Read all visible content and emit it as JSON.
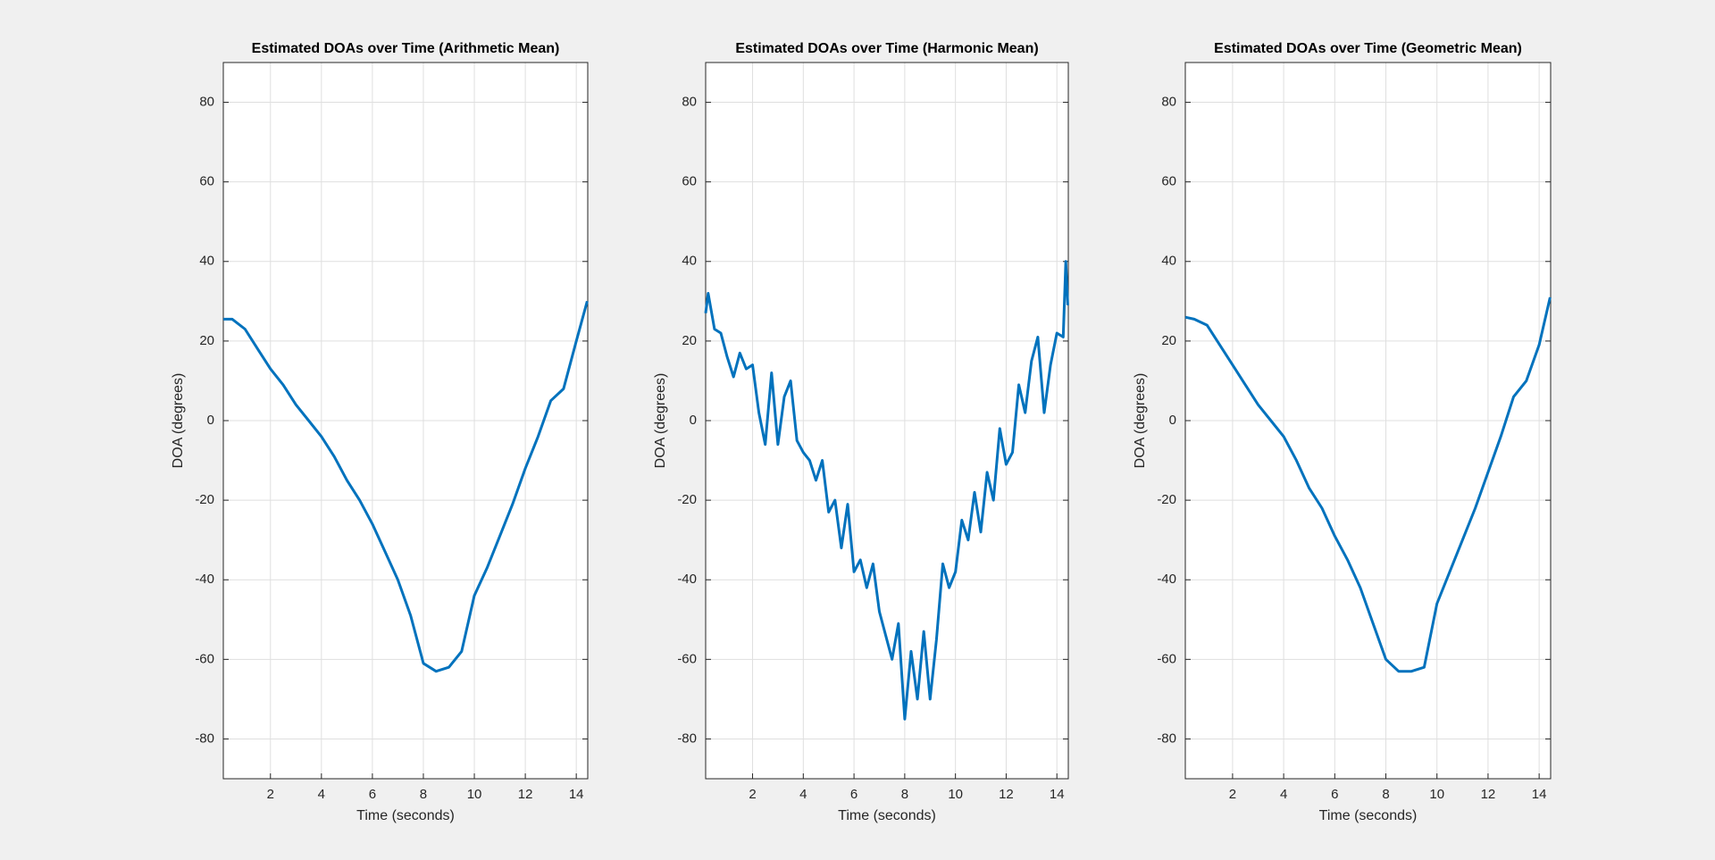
{
  "chart_data": [
    {
      "type": "line",
      "title": "Estimated DOAs over Time (Arithmetic Mean)",
      "xlabel": "Time (seconds)",
      "ylabel": "DOA (degrees)",
      "x": [
        0.15,
        0.5,
        1,
        1.5,
        2,
        2.5,
        3,
        3.5,
        4,
        4.5,
        5,
        5.5,
        6,
        6.5,
        7,
        7.5,
        8,
        8.5,
        9,
        9.5,
        10,
        10.5,
        11,
        11.5,
        12,
        12.5,
        13,
        13.5,
        14,
        14.43
      ],
      "series": [
        {
          "color": "#0072bd",
          "values": [
            25.5,
            25.5,
            23,
            18,
            13,
            9,
            4,
            0,
            -4,
            -9,
            -15,
            -20,
            -26,
            -33,
            -40,
            -49,
            -61,
            -63,
            -62,
            -58,
            -44,
            -37,
            -29,
            -21,
            -12,
            -4,
            5,
            8,
            20,
            30
          ]
        }
      ],
      "xlim": [
        0.15,
        14.45
      ],
      "ylim": [
        -90,
        90
      ],
      "xticks": [
        2,
        4,
        6,
        8,
        10,
        12,
        14
      ],
      "yticks": [
        -80,
        -60,
        -40,
        -20,
        0,
        20,
        40,
        60,
        80
      ],
      "grid": true
    },
    {
      "type": "line",
      "title": "Estimated DOAs over Time (Harmonic Mean)",
      "xlabel": "Time (seconds)",
      "ylabel": "DOA (degrees)",
      "x": [
        0.15,
        0.25,
        0.5,
        0.75,
        1,
        1.25,
        1.5,
        1.75,
        2,
        2.25,
        2.5,
        2.75,
        3,
        3.25,
        3.5,
        3.75,
        4,
        4.25,
        4.5,
        4.75,
        5,
        5.25,
        5.5,
        5.75,
        6,
        6.25,
        6.5,
        6.75,
        7,
        7.25,
        7.5,
        7.75,
        8,
        8.25,
        8.5,
        8.75,
        9,
        9.25,
        9.5,
        9.75,
        10,
        10.25,
        10.5,
        10.75,
        11,
        11.25,
        11.5,
        11.75,
        12,
        12.25,
        12.5,
        12.75,
        13,
        13.25,
        13.5,
        13.75,
        14,
        14.25,
        14.35,
        14.43
      ],
      "series": [
        {
          "color": "#0072bd",
          "values": [
            27,
            32,
            23,
            22,
            16,
            11,
            17,
            13,
            14,
            2,
            -6,
            12,
            -6,
            6,
            10,
            -5,
            -8,
            -10,
            -15,
            -10,
            -23,
            -20,
            -32,
            -21,
            -38,
            -35,
            -42,
            -36,
            -48,
            -54,
            -60,
            -51,
            -75,
            -58,
            -70,
            -53,
            -70,
            -55,
            -36,
            -42,
            -38,
            -25,
            -30,
            -18,
            -28,
            -13,
            -20,
            -2,
            -11,
            -8,
            9,
            2,
            15,
            21,
            2,
            14,
            22,
            21,
            40,
            29
          ]
        }
      ],
      "xlim": [
        0.15,
        14.45
      ],
      "ylim": [
        -90,
        90
      ],
      "xticks": [
        2,
        4,
        6,
        8,
        10,
        12,
        14
      ],
      "yticks": [
        -80,
        -60,
        -40,
        -20,
        0,
        20,
        40,
        60,
        80
      ],
      "grid": true
    },
    {
      "type": "line",
      "title": "Estimated DOAs over Time (Geometric Mean)",
      "xlabel": "Time (seconds)",
      "ylabel": "DOA (degrees)",
      "x": [
        0.15,
        0.5,
        1,
        1.5,
        2,
        2.5,
        3,
        3.5,
        4,
        4.5,
        5,
        5.5,
        6,
        6.5,
        7,
        7.5,
        8,
        8.5,
        9,
        9.5,
        10,
        10.5,
        11,
        11.5,
        12,
        12.5,
        13,
        13.5,
        14,
        14.43
      ],
      "series": [
        {
          "color": "#0072bd",
          "values": [
            26,
            25.5,
            24,
            19,
            14,
            9,
            4,
            0,
            -4,
            -10,
            -17,
            -22,
            -29,
            -35,
            -42,
            -51,
            -60,
            -63,
            -63,
            -62,
            -46,
            -38,
            -30,
            -22,
            -13,
            -4,
            6,
            10,
            19,
            31
          ]
        }
      ],
      "xlim": [
        0.15,
        14.45
      ],
      "ylim": [
        -90,
        90
      ],
      "xticks": [
        2,
        4,
        6,
        8,
        10,
        12,
        14
      ],
      "yticks": [
        -80,
        -60,
        -40,
        -20,
        0,
        20,
        40,
        60,
        80
      ],
      "grid": true
    }
  ]
}
